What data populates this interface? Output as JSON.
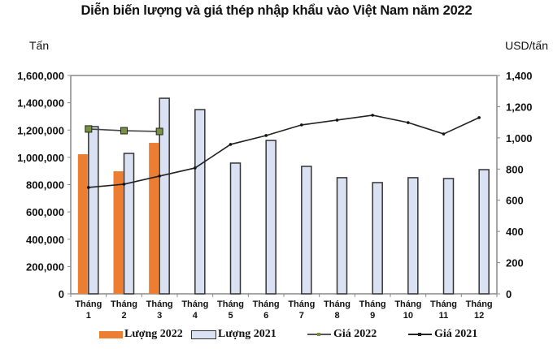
{
  "title": "Diễn biến lượng và giá thép nhập khẩu vào Việt Nam năm 2022",
  "axes": {
    "left_unit": "Tấn",
    "right_unit": "USD/tấn",
    "left_ticks": [
      "0",
      "200,000",
      "400,000",
      "600,000",
      "800,000",
      "1,000,000",
      "1,200,000",
      "1,400,000",
      "1,600,000"
    ],
    "right_ticks": [
      "0",
      "200",
      "400",
      "600",
      "800",
      "1,000",
      "1,200",
      "1,400"
    ]
  },
  "legend": [
    {
      "label": "Lượng 2022",
      "kind": "bar",
      "color": "#ED7D31"
    },
    {
      "label": "Lượng 2021",
      "kind": "bar",
      "color": "#D9E1F2"
    },
    {
      "label": "Giá 2022",
      "kind": "line",
      "color": "#4F6228"
    },
    {
      "label": "Giá 2021",
      "kind": "line",
      "color": "#222222"
    }
  ],
  "colors": {
    "bar_2022": "#ED7D31",
    "bar_2021": "#D9E1F2",
    "bar_2021_border": "#333333",
    "price_2022_marker": "#76923C",
    "price_2022_line": "#444444",
    "price_2021_line": "#222222",
    "axis": "#888888"
  },
  "chart_data": {
    "type": "bar",
    "title": "Diễn biến lượng và giá thép nhập khẩu vào Việt Nam năm 2022",
    "categories": [
      "Tháng 1",
      "Tháng 2",
      "Tháng 3",
      "Tháng 4",
      "Tháng 5",
      "Tháng 6",
      "Tháng 7",
      "Tháng 8",
      "Tháng 9",
      "Tháng 10",
      "Tháng 11",
      "Tháng 12"
    ],
    "category_lines": [
      [
        "Tháng",
        "1"
      ],
      [
        "Tháng",
        "2"
      ],
      [
        "Tháng",
        "3"
      ],
      [
        "Tháng",
        "4"
      ],
      [
        "Tháng",
        "5"
      ],
      [
        "Tháng",
        "6"
      ],
      [
        "Tháng",
        "7"
      ],
      [
        "Tháng",
        "8"
      ],
      [
        "Tháng",
        "9"
      ],
      [
        "Tháng",
        "10"
      ],
      [
        "Tháng",
        "11"
      ],
      [
        "Tháng",
        "12"
      ]
    ],
    "xlabel": "",
    "ylabel": "Tấn",
    "y2label": "USD/tấn",
    "ylim": [
      0,
      1600000
    ],
    "y2lim": [
      0,
      1400
    ],
    "grid": false,
    "legend_position": "bottom",
    "series": [
      {
        "name": "Lượng 2022",
        "type": "bar",
        "axis": "left",
        "values": [
          1023000,
          898000,
          1106000,
          null,
          null,
          null,
          null,
          null,
          null,
          null,
          null,
          null
        ]
      },
      {
        "name": "Lượng 2021",
        "type": "bar",
        "axis": "left",
        "values": [
          1225000,
          1029000,
          1433000,
          1350000,
          958000,
          1124000,
          934000,
          851000,
          815000,
          851000,
          845000,
          910000
        ]
      },
      {
        "name": "Giá 2022",
        "type": "line",
        "axis": "right",
        "values": [
          1057,
          1046,
          1041,
          null,
          null,
          null,
          null,
          null,
          null,
          null,
          null,
          null
        ]
      },
      {
        "name": "Giá 2021",
        "type": "line",
        "axis": "right",
        "values": [
          682,
          703,
          755,
          807,
          958,
          1015,
          1083,
          1114,
          1145,
          1098,
          1025,
          1130
        ]
      }
    ]
  }
}
